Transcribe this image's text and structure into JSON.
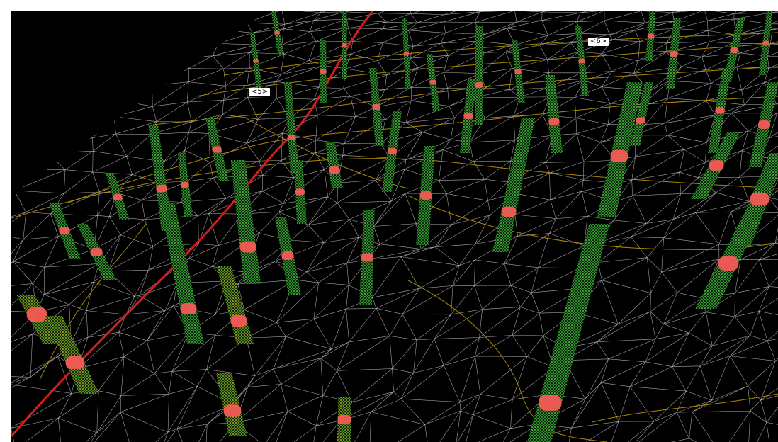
{
  "scene": {
    "description_type": "lidar-point-cloud-forest-inventory",
    "colors": {
      "background": "#000000",
      "frame": "#ffffff",
      "mesh": "#e6e6e6",
      "contour": "#c8a000",
      "trail": "#d41e1e",
      "trunk_green": "#3cdc3c",
      "trunk_yellow": "#c8e628",
      "stem_marker": "#ff5a5a"
    }
  },
  "plot_labels": [
    {
      "text": "<5>"
    },
    {
      "text": "<6>"
    }
  ]
}
